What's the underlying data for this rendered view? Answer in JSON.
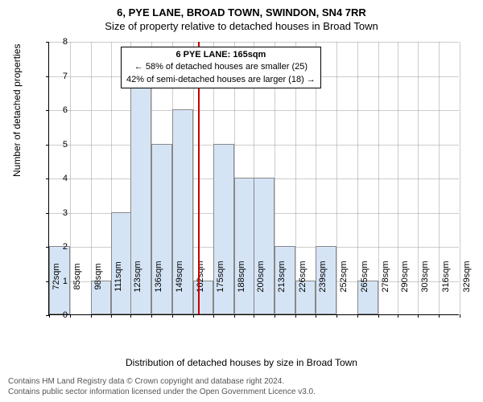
{
  "titles": {
    "line1": "6, PYE LANE, BROAD TOWN, SWINDON, SN4 7RR",
    "line2": "Size of property relative to detached houses in Broad Town"
  },
  "axes": {
    "ylabel": "Number of detached properties",
    "xlabel": "Distribution of detached houses by size in Broad Town",
    "ymin": 0,
    "ymax": 8,
    "ytick_step": 1,
    "xticks": [
      72,
      85,
      98,
      111,
      123,
      136,
      149,
      162,
      175,
      188,
      200,
      213,
      226,
      239,
      252,
      265,
      278,
      290,
      303,
      316,
      329
    ],
    "xtick_suffix": "sqm"
  },
  "chart": {
    "type": "histogram",
    "bar_color": "#d5e4f5",
    "bar_border": "#888888",
    "grid_color": "#999999",
    "background": "#ffffff",
    "bars": [
      {
        "x": 72,
        "count": 2
      },
      {
        "x": 85,
        "count": 0
      },
      {
        "x": 98,
        "count": 1
      },
      {
        "x": 111,
        "count": 3
      },
      {
        "x": 123,
        "count": 7
      },
      {
        "x": 136,
        "count": 5
      },
      {
        "x": 149,
        "count": 6
      },
      {
        "x": 162,
        "count": 1
      },
      {
        "x": 175,
        "count": 5
      },
      {
        "x": 188,
        "count": 4
      },
      {
        "x": 200,
        "count": 4
      },
      {
        "x": 213,
        "count": 2
      },
      {
        "x": 226,
        "count": 1
      },
      {
        "x": 239,
        "count": 2
      },
      {
        "x": 252,
        "count": 0
      },
      {
        "x": 265,
        "count": 1
      },
      {
        "x": 278,
        "count": 0
      },
      {
        "x": 290,
        "count": 0
      },
      {
        "x": 303,
        "count": 0
      },
      {
        "x": 316,
        "count": 0
      }
    ],
    "reference_line": {
      "x": 165,
      "color": "#cc0000"
    }
  },
  "callout": {
    "title": "6 PYE LANE: 165sqm",
    "line1": "← 58% of detached houses are smaller (25)",
    "line2": "42% of semi-detached houses are larger (18) →"
  },
  "footer": {
    "line1": "Contains HM Land Registry data © Crown copyright and database right 2024.",
    "line2": "Contains public sector information licensed under the Open Government Licence v3.0."
  }
}
